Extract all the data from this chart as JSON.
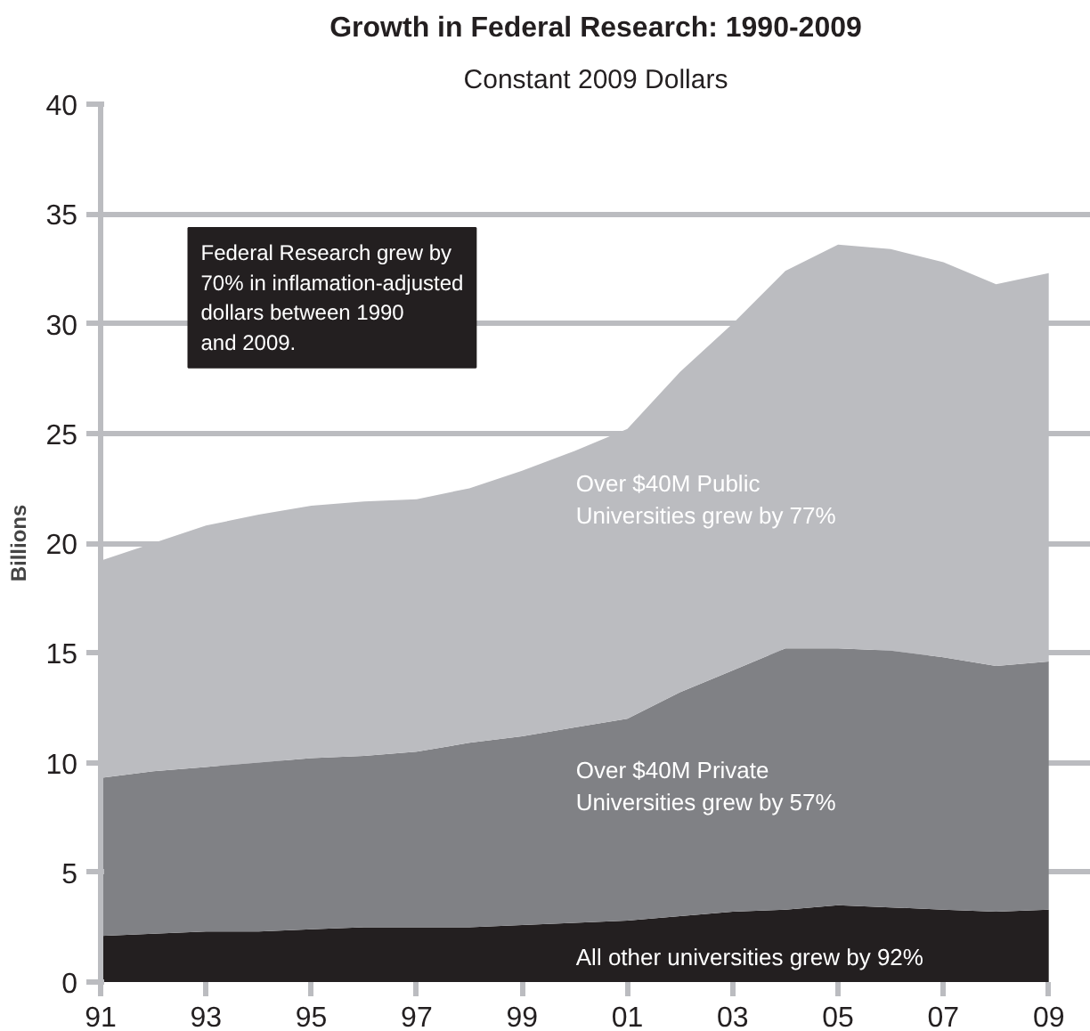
{
  "chart_data": {
    "type": "area",
    "stacked": true,
    "title": "Growth in Federal Research: 1990-2009",
    "subtitle": "Constant 2009 Dollars",
    "ylabel": "Billions",
    "x": [
      1991,
      1992,
      1993,
      1994,
      1995,
      1996,
      1997,
      1998,
      1999,
      2000,
      2001,
      2002,
      2003,
      2004,
      2005,
      2006,
      2007,
      2008,
      2009
    ],
    "series": [
      {
        "color": "#231f20",
        "values": [
          2.1,
          2.2,
          2.3,
          2.3,
          2.4,
          2.5,
          2.5,
          2.5,
          2.6,
          2.7,
          2.8,
          3.0,
          3.2,
          3.3,
          3.5,
          3.4,
          3.3,
          3.2,
          3.3
        ]
      },
      {
        "color": "#808185",
        "values": [
          7.2,
          7.4,
          7.5,
          7.7,
          7.8,
          7.8,
          8.0,
          8.4,
          8.6,
          8.9,
          9.2,
          10.2,
          11.0,
          11.9,
          11.7,
          11.7,
          11.5,
          11.2,
          11.3
        ]
      },
      {
        "color": "#bbbcc0",
        "values": [
          9.9,
          10.4,
          11.0,
          11.3,
          11.5,
          11.6,
          11.5,
          11.6,
          12.1,
          12.6,
          13.2,
          14.6,
          15.8,
          17.2,
          18.4,
          18.3,
          18.0,
          17.4,
          17.7
        ]
      }
    ],
    "xlim": [
      1991,
      2009.8
    ],
    "ylim": [
      0,
      40
    ],
    "xticks": [
      {
        "value": 1991,
        "label": "91"
      },
      {
        "value": 1993,
        "label": "93"
      },
      {
        "value": 1995,
        "label": "95"
      },
      {
        "value": 1997,
        "label": "97"
      },
      {
        "value": 1999,
        "label": "99"
      },
      {
        "value": 2001,
        "label": "01"
      },
      {
        "value": 2003,
        "label": "03"
      },
      {
        "value": 2005,
        "label": "05"
      },
      {
        "value": 2007,
        "label": "07"
      },
      {
        "value": 2009,
        "label": "09"
      }
    ],
    "yticks": [
      0,
      5,
      10,
      15,
      20,
      25,
      30,
      35,
      40
    ],
    "grid": "y",
    "annotations": [
      "Federal Research grew by\n70% in inflamation-adjusted\ndollars between 1990\nand 2009.",
      "Over $40M Public\nUniversities grew by 77%",
      "Over $40M Private\nUniversities grew by 57%",
      "All other universities grew by 92%"
    ]
  }
}
